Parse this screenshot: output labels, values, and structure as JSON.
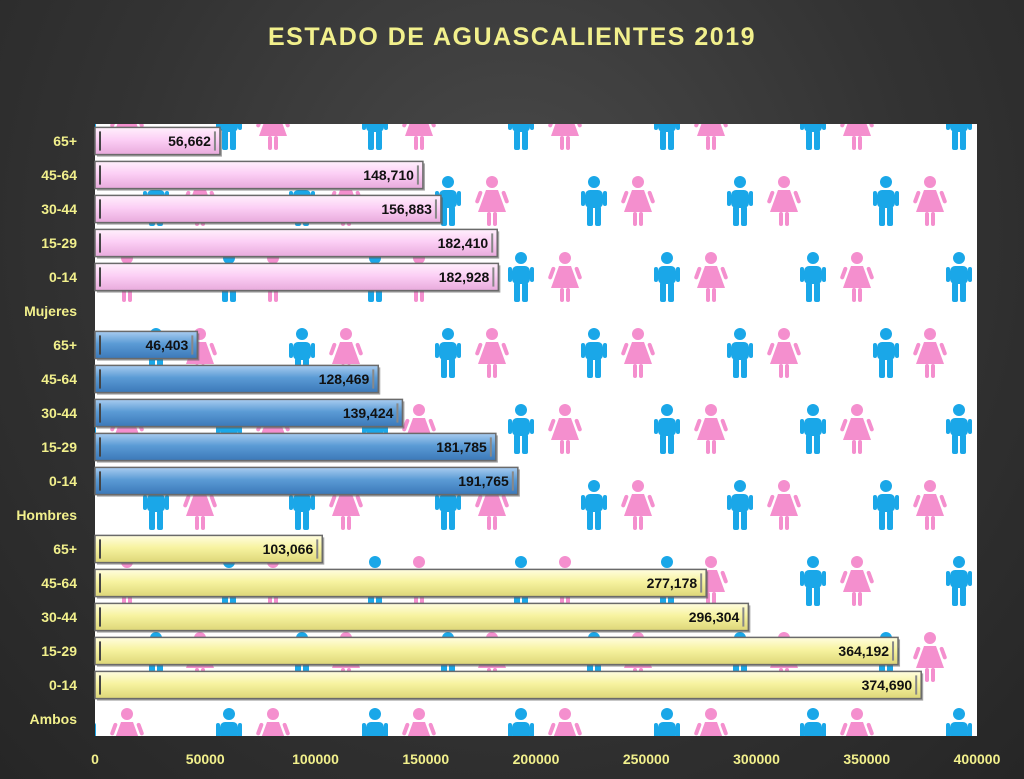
{
  "chart_data": {
    "type": "bar",
    "orientation": "horizontal",
    "title": "ESTADO DE AGUASCALIENTES 2019",
    "categories": [
      "Ambos",
      "0-14",
      "15-29",
      "30-44",
      "45-64",
      "65+",
      "Hombres",
      "0-14",
      "15-29",
      "30-44",
      "45-64",
      "65+",
      "Mujeres",
      "0-14",
      "15-29",
      "30-44",
      "45-64",
      "65+"
    ],
    "series": [
      {
        "group": "Ambos",
        "color": "#f7f3a0",
        "points": [
          {
            "category": "0-14",
            "value": 374690,
            "label": "374,690"
          },
          {
            "category": "15-29",
            "value": 364192,
            "label": "364,192"
          },
          {
            "category": "30-44",
            "value": 296304,
            "label": "296,304"
          },
          {
            "category": "45-64",
            "value": 277178,
            "label": "277,178"
          },
          {
            "category": "65+",
            "value": 103066,
            "label": "103,066"
          }
        ]
      },
      {
        "group": "Hombres",
        "color": "#5b9bd5",
        "points": [
          {
            "category": "0-14",
            "value": 191765,
            "label": "191,765"
          },
          {
            "category": "15-29",
            "value": 181785,
            "label": "181,785"
          },
          {
            "category": "30-44",
            "value": 139424,
            "label": "139,424"
          },
          {
            "category": "45-64",
            "value": 128469,
            "label": "128,469"
          },
          {
            "category": "65+",
            "value": 46403,
            "label": "46,403"
          }
        ]
      },
      {
        "group": "Mujeres",
        "color": "#fccff5",
        "points": [
          {
            "category": "0-14",
            "value": 182928,
            "label": "182,928"
          },
          {
            "category": "15-29",
            "value": 182410,
            "label": "182,410"
          },
          {
            "category": "30-44",
            "value": 156883,
            "label": "156,883"
          },
          {
            "category": "45-64",
            "value": 148710,
            "label": "148,710"
          },
          {
            "category": "65+",
            "value": 56662,
            "label": "56,662"
          }
        ]
      }
    ],
    "x_ticks": [
      "0",
      "50000",
      "100000",
      "150000",
      "200000",
      "250000",
      "300000",
      "350000",
      "400000"
    ],
    "xlim": [
      0,
      400000
    ],
    "grid": false,
    "legend": "none",
    "background": "pictogram pattern of blue man and pink woman figures",
    "colors": {
      "text": "#f2f08c",
      "man_icon": "#1aa7e8",
      "woman_icon": "#f48fce"
    }
  }
}
